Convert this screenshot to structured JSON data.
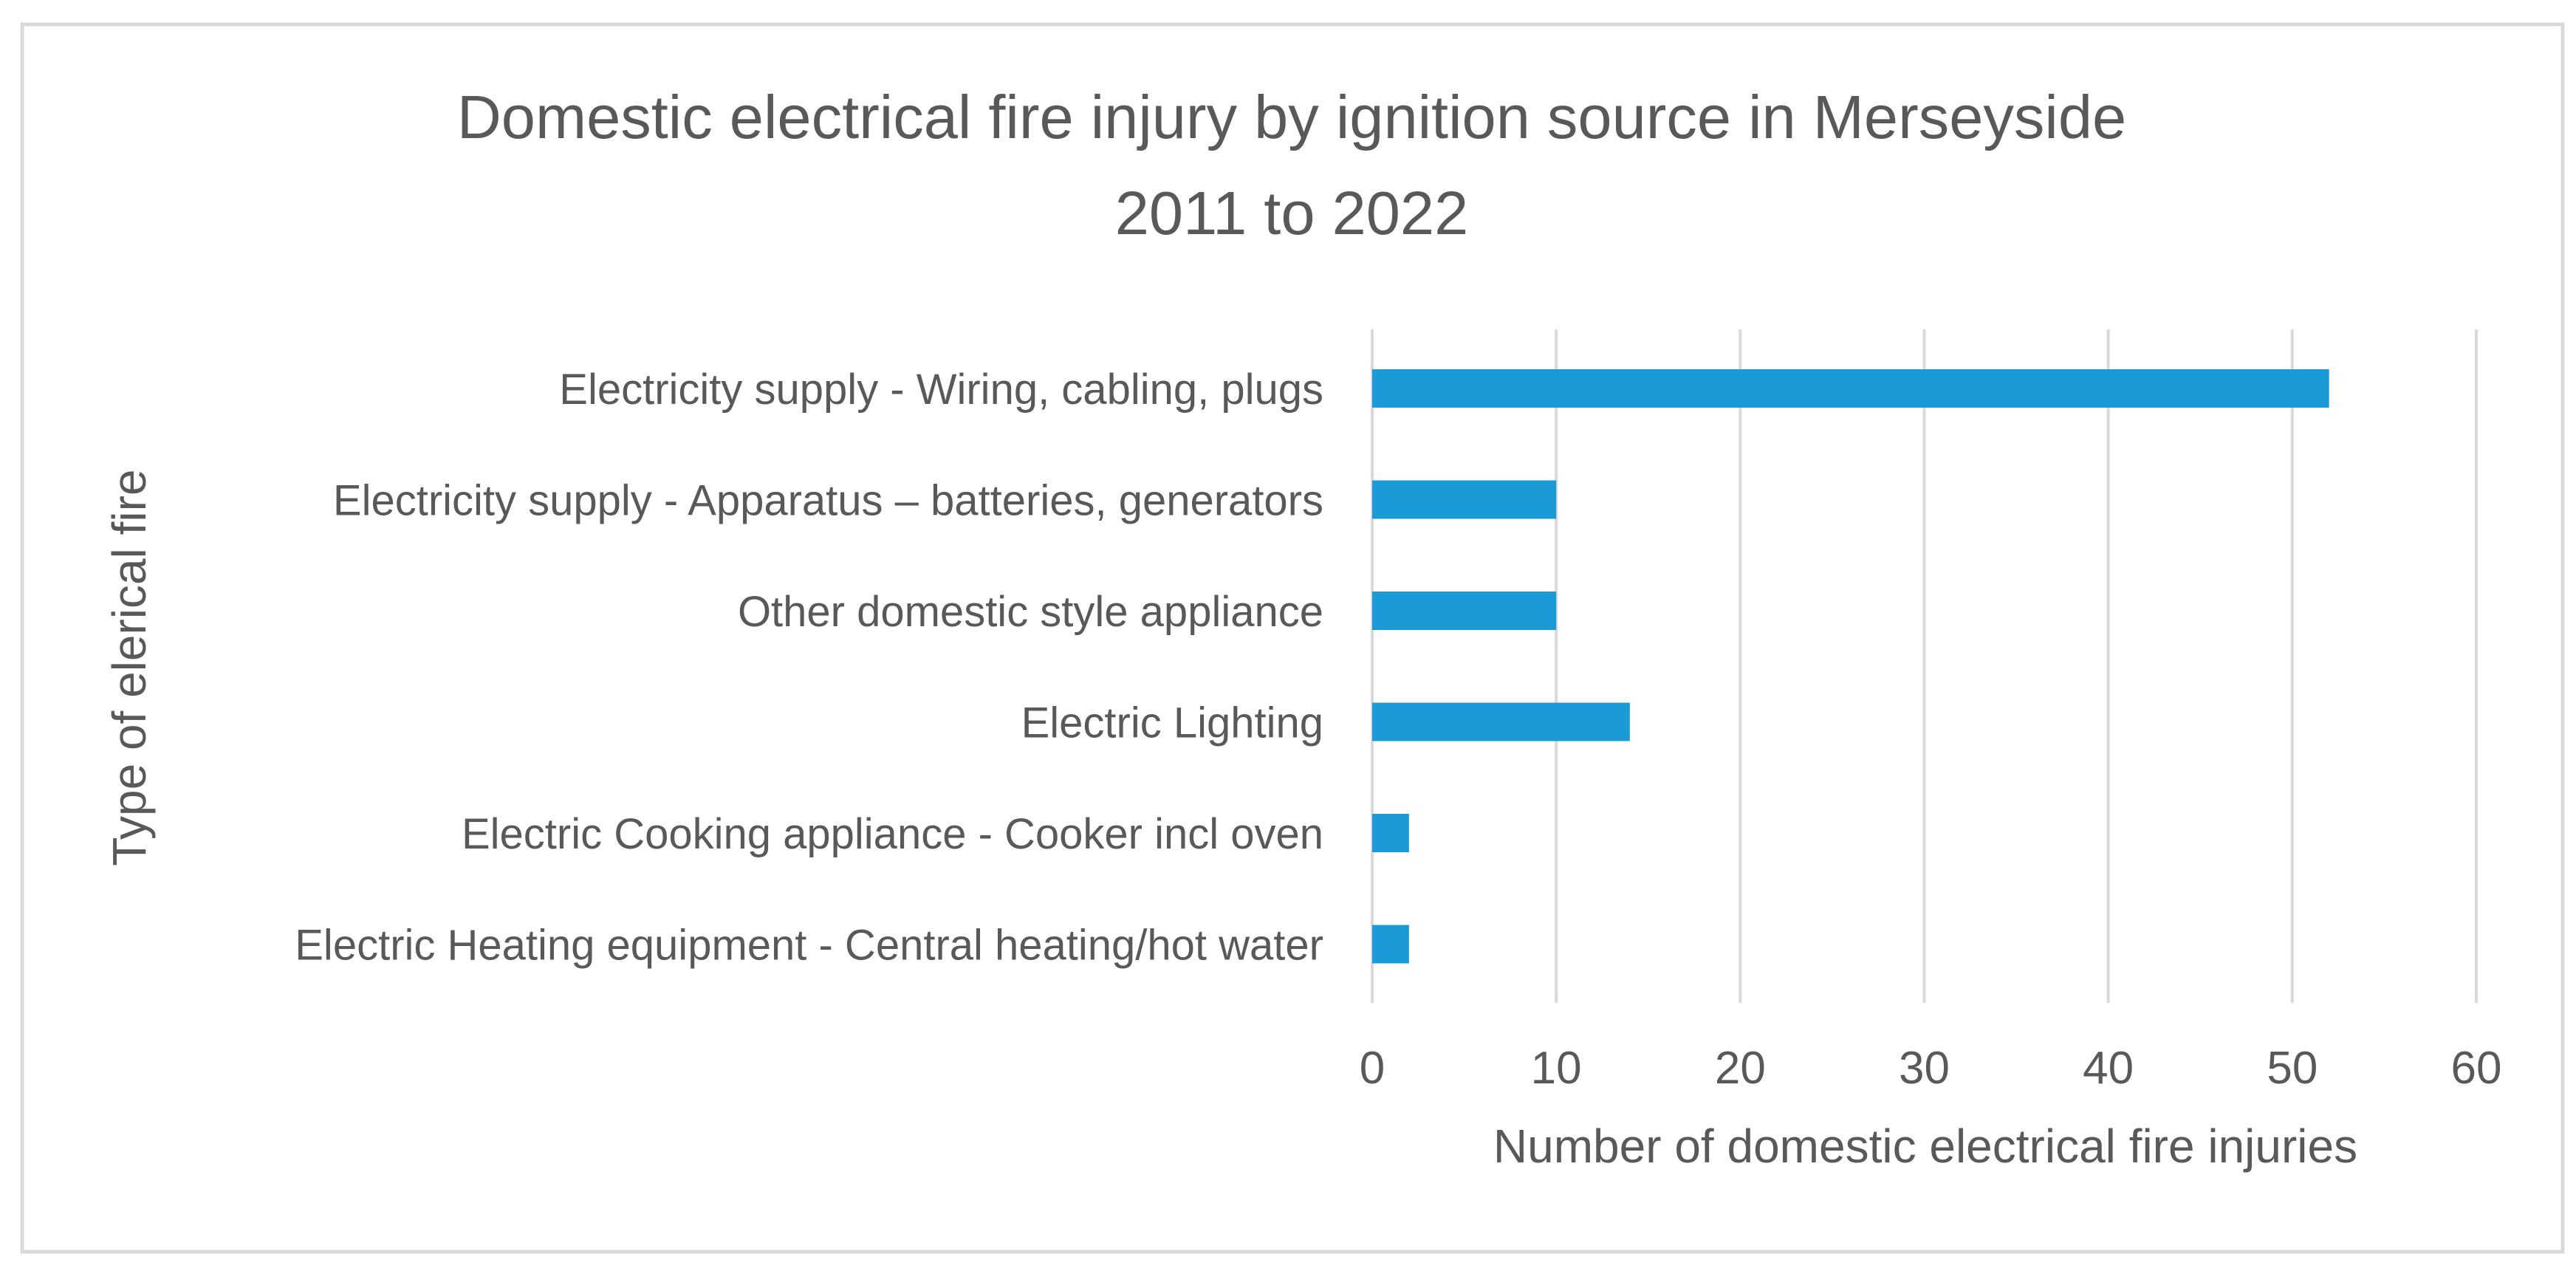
{
  "chart_data": {
    "type": "bar",
    "orientation": "horizontal",
    "title_lines": [
      "Domestic electrical fire injury by ignition source in Merseyside",
      "2011 to 2022"
    ],
    "xlabel": "Number of domestic electrical fire injuries",
    "ylabel": "Type of  elerical fire",
    "categories": [
      "Electricity supply - Wiring, cabling, plugs",
      "Electricity supply - Apparatus – batteries, generators",
      "Other domestic style appliance",
      "Electric Lighting",
      "Electric Cooking appliance - Cooker incl oven",
      "Electric Heating equipment - Central heating/hot water"
    ],
    "series": [
      {
        "values": [
          52,
          10,
          10,
          14,
          2,
          2
        ]
      }
    ],
    "xlim": [
      0,
      60
    ],
    "xticks": [
      "0",
      "10",
      "20",
      "30",
      "40",
      "50",
      "60"
    ],
    "grid": "vertical",
    "legend": "none",
    "colors": {
      "bar": "#1a9bd7",
      "grid": "#d9d9d9",
      "text": "#595959",
      "border": "#d9d9d9"
    }
  }
}
